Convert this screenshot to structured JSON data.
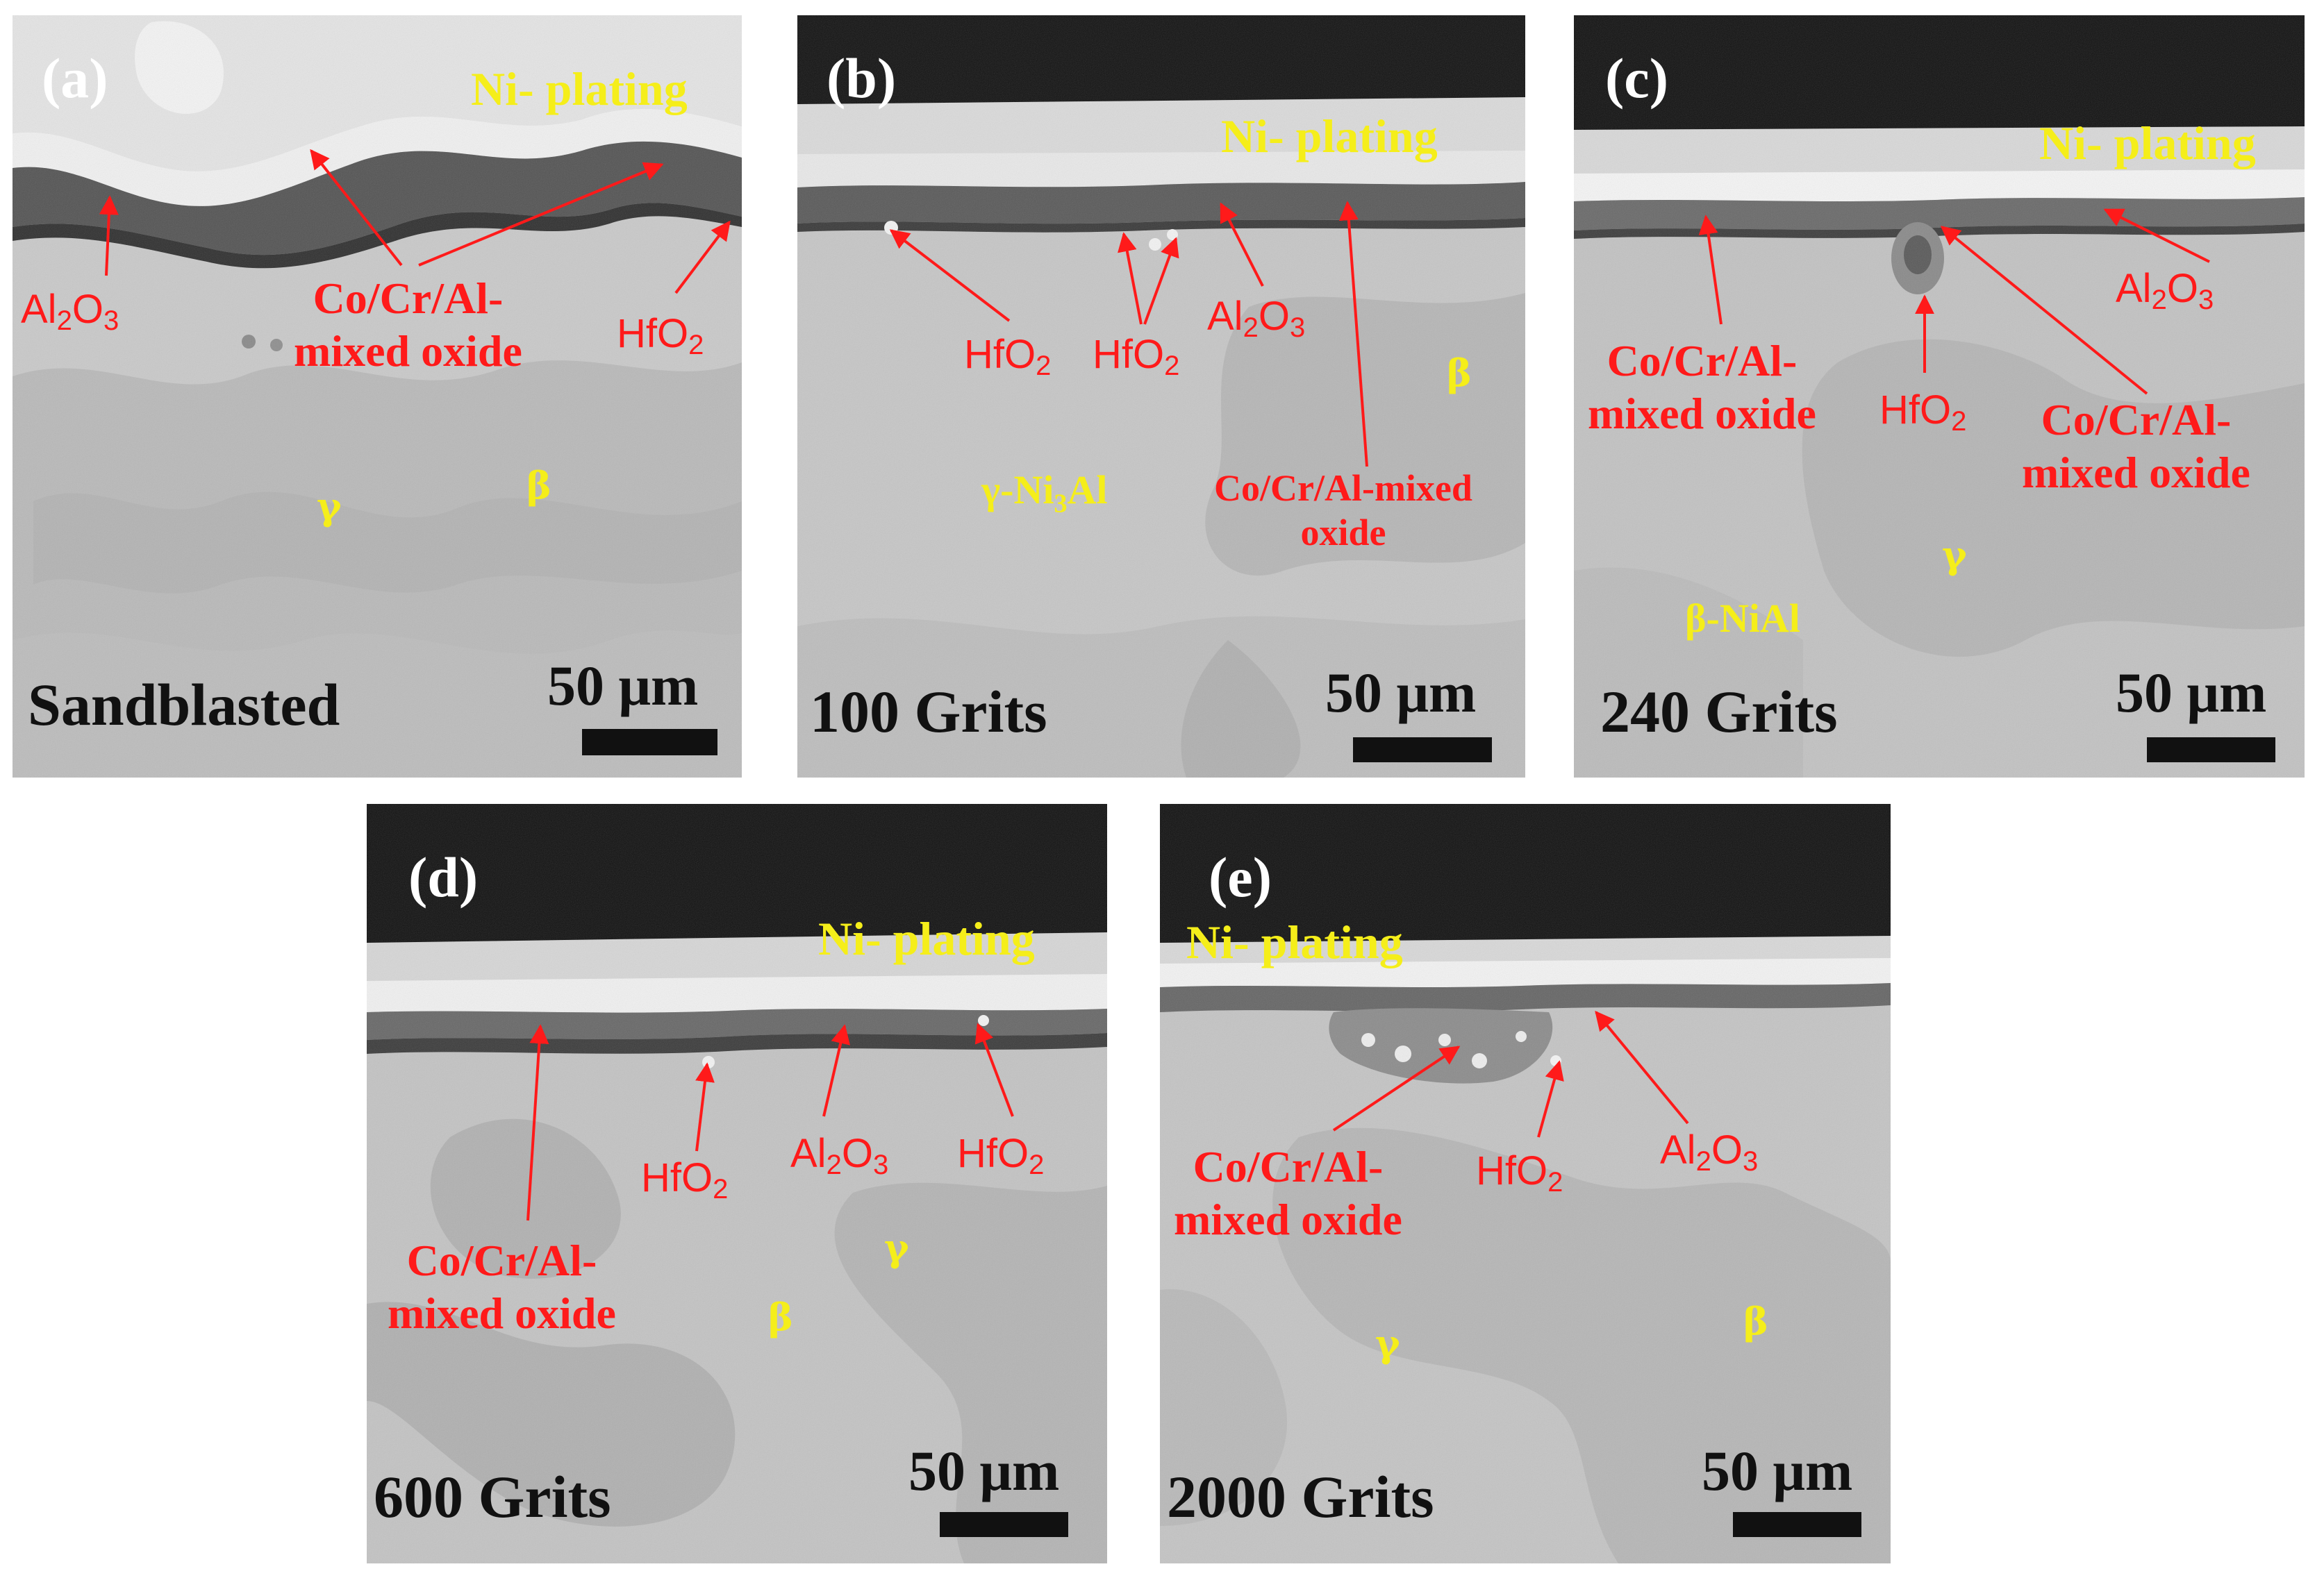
{
  "panels": [
    {
      "letter": "(a)",
      "plating": "Ni- plating",
      "phase1": "γ",
      "phase2": "β",
      "condition": "Sandblasted",
      "scale": "50 μm",
      "labels": {
        "al2o3_base": "Al",
        "al2o3_s1": "2",
        "al2o3_mid": "O",
        "al2o3_s2": "3",
        "mixed1": "Co/Cr/Al-",
        "mixed2": "mixed oxide",
        "hfo2_base": "HfO",
        "hfo2_sub": "2"
      }
    },
    {
      "letter": "(b)",
      "plating": "Ni- plating",
      "phase1": "γ-Ni",
      "phase1_sub": "3",
      "phase1_tail": "Al",
      "phase2": "β",
      "condition": "100 Grits",
      "scale": "50 μm",
      "labels": {
        "hfo2a_base": "HfO",
        "hfo2a_sub": "2",
        "hfo2b_base": "HfO",
        "hfo2b_sub": "2",
        "al2o3_base": "Al",
        "al2o3_s1": "2",
        "al2o3_mid": "O",
        "al2o3_s2": "3",
        "mixed1": "Co/Cr/Al-mixed",
        "mixed2": "oxide"
      }
    },
    {
      "letter": "(c)",
      "plating": "Ni- plating",
      "phase1": "β-NiAl",
      "phase2": "γ",
      "condition": "240 Grits",
      "scale": "50 μm",
      "labels": {
        "mixedA1": "Co/Cr/Al-",
        "mixedA2": "mixed oxide",
        "hfo2_base": "HfO",
        "hfo2_sub": "2",
        "mixedB1": "Co/Cr/Al-",
        "mixedB2": "mixed oxide",
        "al2o3_base": "Al",
        "al2o3_s1": "2",
        "al2o3_mid": "O",
        "al2o3_s2": "3"
      }
    },
    {
      "letter": "(d)",
      "plating": "Ni- plating",
      "phase1": "γ",
      "phase2": "β",
      "condition": "600 Grits",
      "scale": "50 μm",
      "labels": {
        "mixed1": "Co/Cr/Al-",
        "mixed2": "mixed oxide",
        "hfo2a_base": "HfO",
        "hfo2a_sub": "2",
        "al2o3_base": "Al",
        "al2o3_s1": "2",
        "al2o3_mid": "O",
        "al2o3_s2": "3",
        "hfo2b_base": "HfO",
        "hfo2b_sub": "2"
      }
    },
    {
      "letter": "(e)",
      "plating": "Ni- plating",
      "phase1": "γ",
      "phase2": "β",
      "condition": "2000 Grits",
      "scale": "50 μm",
      "labels": {
        "mixed1": "Co/Cr/Al-",
        "mixed2": "mixed oxide",
        "hfo2_base": "HfO",
        "hfo2_sub": "2",
        "al2o3_base": "Al",
        "al2o3_s1": "2",
        "al2o3_mid": "O",
        "al2o3_s2": "3"
      }
    }
  ]
}
